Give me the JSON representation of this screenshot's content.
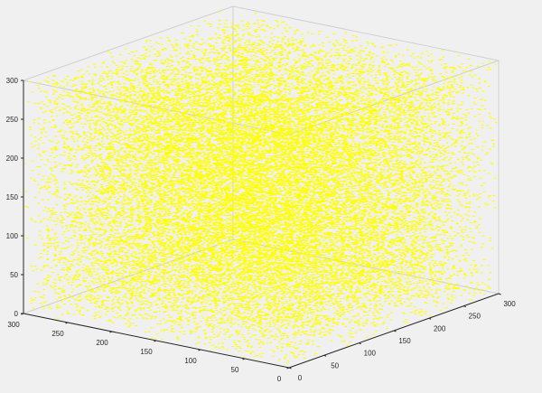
{
  "chart_data": {
    "type": "scatter3d",
    "title": "",
    "xlabel": "",
    "ylabel": "",
    "zlabel": "",
    "xlim": [
      0,
      300
    ],
    "ylim": [
      0,
      300
    ],
    "zlim": [
      0,
      300
    ],
    "grid": false,
    "box": true,
    "marker_color": "#ffff00",
    "point_count": 24000,
    "distribution": "uniform",
    "x_ticks": [
      {
        "value": 0,
        "label": "0"
      },
      {
        "value": 50,
        "label": "50"
      },
      {
        "value": 100,
        "label": "100"
      },
      {
        "value": 150,
        "label": "150"
      },
      {
        "value": 200,
        "label": "200"
      },
      {
        "value": 250,
        "label": "250"
      },
      {
        "value": 300,
        "label": "300"
      }
    ],
    "y_ticks": [
      {
        "value": 0,
        "label": "0"
      },
      {
        "value": 50,
        "label": "50"
      },
      {
        "value": 100,
        "label": "100"
      },
      {
        "value": 150,
        "label": "150"
      },
      {
        "value": 200,
        "label": "200"
      },
      {
        "value": 250,
        "label": "250"
      },
      {
        "value": 300,
        "label": "300"
      }
    ],
    "z_ticks": [
      {
        "value": 0,
        "label": "0"
      },
      {
        "value": 50,
        "label": "50"
      },
      {
        "value": 100,
        "label": "100"
      },
      {
        "value": 150,
        "label": "150"
      },
      {
        "value": 200,
        "label": "200"
      },
      {
        "value": 250,
        "label": "250"
      },
      {
        "value": 300,
        "label": "300"
      }
    ]
  },
  "colors": {
    "figure_background": "#f0f0f0",
    "box_line": "#d0d0d0",
    "axis_line": "#262626",
    "tick_text": "#262626"
  }
}
